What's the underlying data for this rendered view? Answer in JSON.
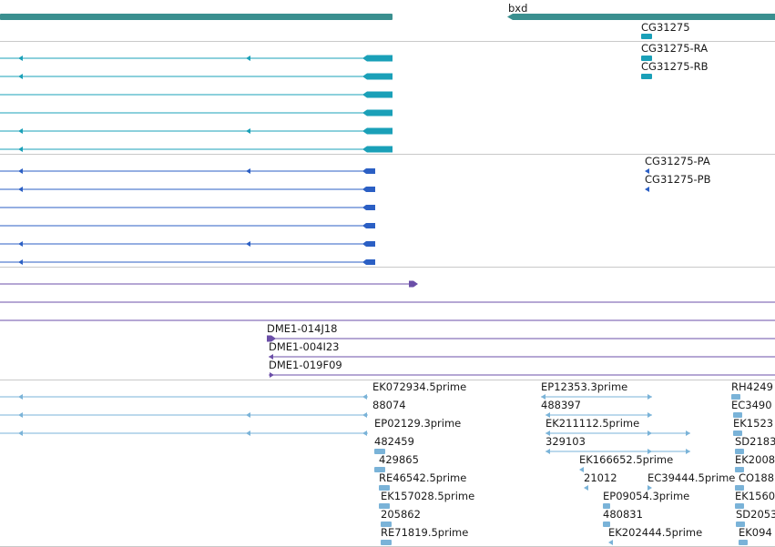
{
  "colors": {
    "gene": "#3a8f8f",
    "mrna": "#1aa0b8",
    "cds": "#2b5fc4",
    "pcr": "#6b4fa8",
    "est": "#7ab3d8",
    "separator": "#c9c9c9"
  },
  "gene_track": {
    "label": "bxd",
    "labels": [
      "CG31275"
    ]
  },
  "mrna_track": {
    "labels": [
      "CG31275-RA",
      "CG31275-RB"
    ]
  },
  "cds_track": {
    "labels": [
      "CG31275-PA",
      "CG31275-PB"
    ]
  },
  "pcr_track": {
    "labels": [
      "DME1-014J18",
      "DME1-004I23",
      "DME1-019F09"
    ]
  },
  "est_track": {
    "labels": [
      "EK072934.5prime",
      "88074",
      "EP02129.3prime",
      "482459",
      "429865",
      "RE46542.5prime",
      "EK157028.5prime",
      "205862",
      "RE71819.5prime",
      "EP12353.3prime",
      "488397",
      "EK211112.5prime",
      "329103",
      "EK166652.5prime",
      "21012",
      "EC39444.5prime",
      "EP09054.3prime",
      "480831",
      "EK202444.5prime",
      "RH4249",
      "EC3490",
      "EK1523",
      "SD2183",
      "EK2008",
      "CO188",
      "EK1560",
      "SD2053",
      "EK094"
    ]
  }
}
